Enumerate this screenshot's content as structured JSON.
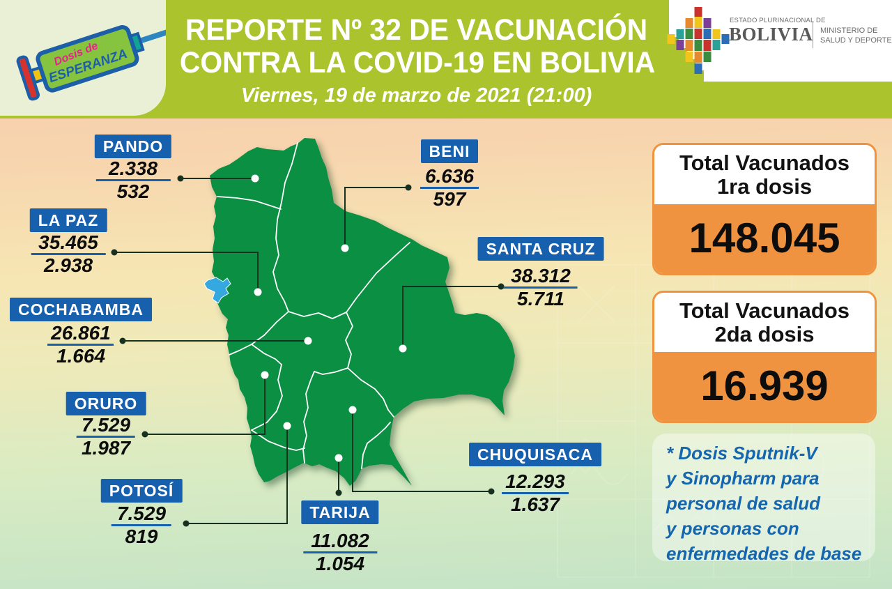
{
  "header": {
    "logo": {
      "line1": "Dosis de",
      "line2": "ESPERANZA"
    },
    "title_line1": "REPORTE Nº 32 DE VACUNACIÓN",
    "title_line2": "CONTRA LA COVID-19 EN BOLIVIA",
    "subtitle": "Viernes, 19 de marzo de 2021 (21:00)",
    "government": {
      "state_small": "ESTADO PLURINACIONAL DE",
      "state_big": "BOLIVIA",
      "ministry_line1": "MINISTERIO DE",
      "ministry_line2": "SALUD Y DEPORTES"
    }
  },
  "chart_data": {
    "type": "table",
    "title": "REPORTE Nº 32 DE VACUNACIÓN CONTRA LA COVID-19 EN BOLIVIA",
    "categories": [
      "PANDO",
      "LA PAZ",
      "COCHABAMBA",
      "ORURO",
      "POTOSÍ",
      "TARIJA",
      "BENI",
      "SANTA CRUZ",
      "CHUQUISACA"
    ],
    "series": [
      {
        "name": "1ra dosis",
        "values": [
          "2.338",
          "35.465",
          "26.861",
          "7.529",
          "7.529",
          "11.082",
          "6.636",
          "38.312",
          "12.293"
        ]
      },
      {
        "name": "2da dosis",
        "values": [
          "532",
          "2.938",
          "1.664",
          "1.987",
          "819",
          "1.054",
          "597",
          "5.711",
          "1.637"
        ]
      }
    ]
  },
  "departments": [
    {
      "name": "PANDO",
      "dose1": "2.338",
      "dose2": "532"
    },
    {
      "name": "LA PAZ",
      "dose1": "35.465",
      "dose2": "2.938"
    },
    {
      "name": "COCHABAMBA",
      "dose1": "26.861",
      "dose2": "1.664"
    },
    {
      "name": "ORURO",
      "dose1": "7.529",
      "dose2": "1.987"
    },
    {
      "name": "POTOSÍ",
      "dose1": "7.529",
      "dose2": "819"
    },
    {
      "name": "TARIJA",
      "dose1": "11.082",
      "dose2": "1.054"
    },
    {
      "name": "BENI",
      "dose1": "6.636",
      "dose2": "597"
    },
    {
      "name": "SANTA CRUZ",
      "dose1": "38.312",
      "dose2": "5.711"
    },
    {
      "name": "CHUQUISACA",
      "dose1": "12.293",
      "dose2": "1.637"
    }
  ],
  "totals": [
    {
      "title_line1": "Total Vacunados",
      "title_line2": "1ra dosis",
      "value": "148.045"
    },
    {
      "title_line1": "Total Vacunados",
      "title_line2": "2da dosis",
      "value": "16.939"
    }
  ],
  "note_lines": [
    "* Dosis Sputnik-V",
    "y Sinopharm para",
    "personal de salud",
    "y personas con",
    "enfermedades de base"
  ],
  "colors": {
    "header_green": "#abc32d",
    "label_blue": "#1660ae",
    "map_green": "#0a8f43",
    "orange": "#ef9340",
    "note_blue": "#1566af",
    "lake_blue": "#35a8e0"
  }
}
